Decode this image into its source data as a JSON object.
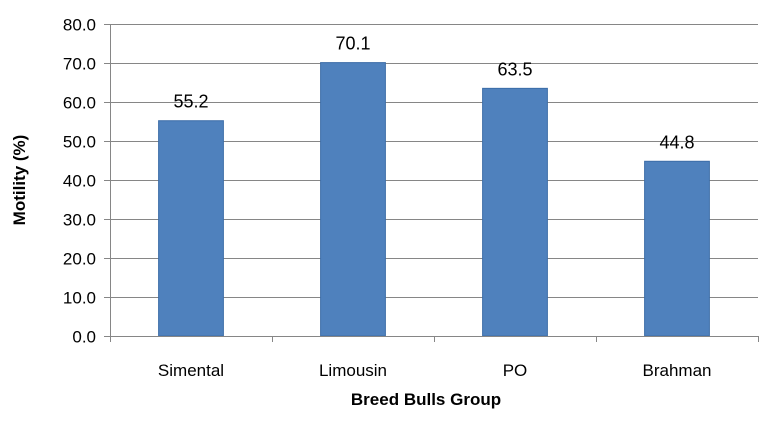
{
  "chart_data": {
    "type": "bar",
    "title": "",
    "xlabel": "Breed Bulls Group",
    "ylabel": "Motility (%)",
    "categories": [
      "Simental",
      "Limousin",
      "PO",
      "Brahman"
    ],
    "values": [
      55.2,
      70.1,
      63.5,
      44.8
    ],
    "data_labels": [
      "55.2",
      "70.1",
      "63.5",
      "44.8"
    ],
    "ylim": [
      0,
      80
    ],
    "yticks": [
      0,
      10,
      20,
      30,
      40,
      50,
      60,
      70,
      80
    ],
    "ytick_labels": [
      "0.0",
      "10.0",
      "20.0",
      "30.0",
      "40.0",
      "50.0",
      "60.0",
      "70.0",
      "80.0"
    ],
    "grid": true,
    "legend": "none",
    "colors": {
      "bar": "#4F81BD",
      "bar_edge": "#3C6DA8",
      "grid": "#868686",
      "axis": "#868686"
    }
  }
}
